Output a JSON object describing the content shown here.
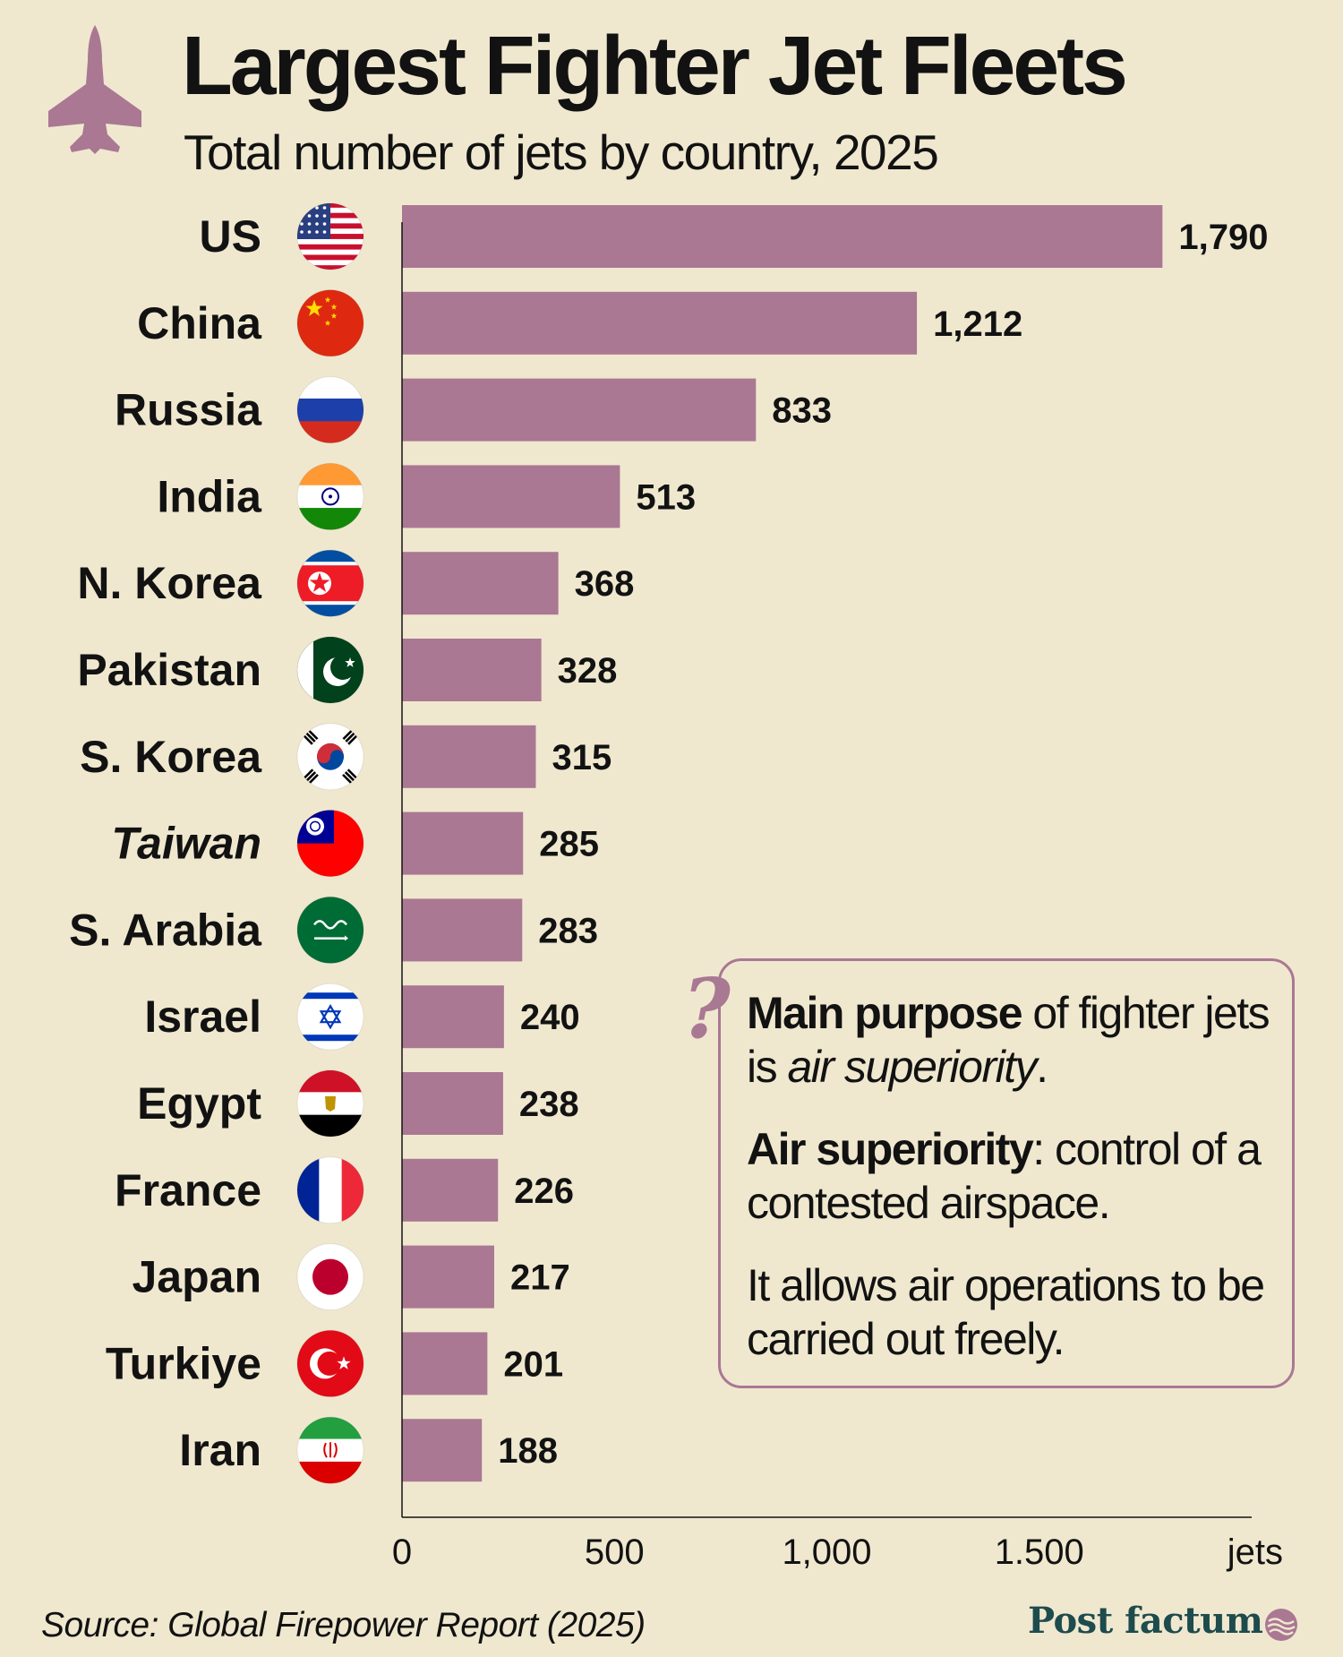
{
  "header": {
    "title": "Largest Fighter Jet Fleets",
    "subtitle": "Total number of jets by country, 2025"
  },
  "colors": {
    "background": "#EFE8CF",
    "bar": "#AA7893",
    "text": "#121212",
    "brand": "#1E4B4D"
  },
  "chart_data": {
    "type": "bar",
    "orientation": "horizontal",
    "title": "Largest Fighter Jet Fleets",
    "subtitle": "Total number of jets by country, 2025",
    "categories": [
      "US",
      "China",
      "Russia",
      "India",
      "N. Korea",
      "Pakistan",
      "S. Korea",
      "Taiwan",
      "S. Arabia",
      "Israel",
      "Egypt",
      "France",
      "Japan",
      "Turkiye",
      "Iran"
    ],
    "values": [
      1790,
      1212,
      833,
      513,
      368,
      328,
      315,
      285,
      283,
      240,
      238,
      226,
      217,
      201,
      188
    ],
    "value_labels": [
      "1,790",
      "1,212",
      "833",
      "513",
      "368",
      "328",
      "315",
      "285",
      "283",
      "240",
      "238",
      "226",
      "217",
      "201",
      "188"
    ],
    "italic_categories": [
      "Taiwan"
    ],
    "flags": [
      "us-flag-icon",
      "china-flag-icon",
      "russia-flag-icon",
      "india-flag-icon",
      "north-korea-flag-icon",
      "pakistan-flag-icon",
      "south-korea-flag-icon",
      "taiwan-flag-icon",
      "saudi-arabia-flag-icon",
      "israel-flag-icon",
      "egypt-flag-icon",
      "france-flag-icon",
      "japan-flag-icon",
      "turkiye-flag-icon",
      "iran-flag-icon"
    ],
    "xlim": [
      0,
      2000
    ],
    "x_ticks": [
      0,
      500,
      1000,
      1500
    ],
    "x_tick_labels": [
      "0",
      "500",
      "1,000",
      "1.500"
    ],
    "xlabel": "jets",
    "ylabel": "",
    "grid": false
  },
  "info": {
    "p1_bold": "Main purpose",
    "p1_rest": " of fighter jets is ",
    "p1_italic": "air superiority",
    "p1_end": ".",
    "p2_bold": "Air superiority",
    "p2_rest": ": control of a contested airspace.",
    "p3": "It allows air operations to be carried out freely.",
    "icon": "question-mark-icon"
  },
  "footer": {
    "source": "Source: Global Firepower Report (2025)",
    "brand": "Post factum"
  }
}
